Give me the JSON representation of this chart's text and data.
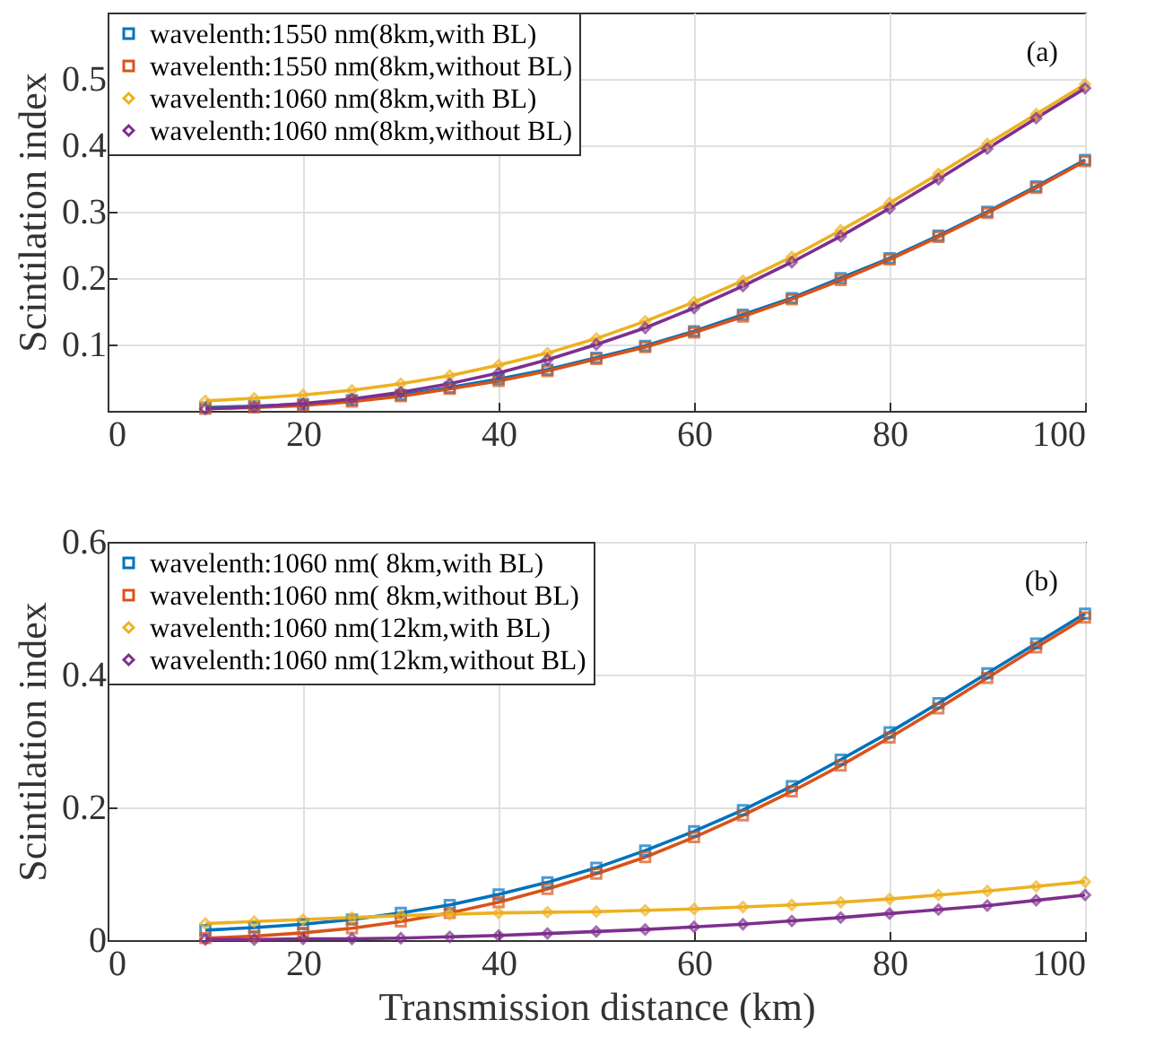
{
  "chart_data": [
    {
      "type": "line",
      "x": [
        10,
        15,
        20,
        25,
        30,
        35,
        40,
        45,
        50,
        55,
        60,
        65,
        70,
        75,
        80,
        85,
        90,
        95,
        100
      ],
      "ylabel": "Scintilation index",
      "annotations": [
        "(a)"
      ],
      "xlim": [
        0,
        100
      ],
      "xticks": [
        0,
        20,
        40,
        60,
        80,
        100
      ],
      "ylim": [
        0,
        0.6
      ],
      "yticks": [
        0.1,
        0.2,
        0.3,
        0.4,
        0.5
      ],
      "grid": true,
      "legend": "top left",
      "line_style": "solid",
      "series": [
        {
          "name": "wavelenth:1550 nm(8km,with BL)",
          "color": "#0072bd",
          "marker": "square",
          "values": [
            0.005,
            0.007,
            0.01,
            0.016,
            0.024,
            0.035,
            0.048,
            0.062,
            0.08,
            0.098,
            0.12,
            0.145,
            0.17,
            0.2,
            0.23,
            0.264,
            0.3,
            0.338,
            0.378
          ]
        },
        {
          "name": "wavelenth:1550 nm(8km,without BL)",
          "color": "#d95319",
          "marker": "square",
          "values": [
            0.003,
            0.005,
            0.008,
            0.014,
            0.022,
            0.033,
            0.045,
            0.06,
            0.078,
            0.096,
            0.118,
            0.142,
            0.168,
            0.197,
            0.228,
            0.262,
            0.298,
            0.336,
            0.376
          ]
        },
        {
          "name": "wavelenth:1060 nm(8km,with BL)",
          "color": "#edb120",
          "marker": "diamond",
          "values": [
            0.015,
            0.019,
            0.024,
            0.031,
            0.041,
            0.053,
            0.069,
            0.087,
            0.109,
            0.135,
            0.164,
            0.196,
            0.232,
            0.272,
            0.313,
            0.357,
            0.402,
            0.447,
            0.492
          ]
        },
        {
          "name": "wavelenth:1060 nm(8km,without BL)",
          "color": "#7e2f8e",
          "marker": "diamond",
          "values": [
            0.003,
            0.006,
            0.011,
            0.018,
            0.028,
            0.041,
            0.057,
            0.077,
            0.1,
            0.125,
            0.155,
            0.188,
            0.224,
            0.263,
            0.305,
            0.349,
            0.395,
            0.441,
            0.486
          ]
        }
      ]
    },
    {
      "type": "line",
      "x": [
        10,
        15,
        20,
        25,
        30,
        35,
        40,
        45,
        50,
        55,
        60,
        65,
        70,
        75,
        80,
        85,
        90,
        95,
        100
      ],
      "xlabel": "Transmission distance (km)",
      "ylabel": "Scintilation index",
      "annotations": [
        "(b)"
      ],
      "xlim": [
        0,
        100
      ],
      "xticks": [
        0,
        20,
        40,
        60,
        80,
        100
      ],
      "ylim": [
        0,
        0.6
      ],
      "yticks": [
        0,
        0.2,
        0.4,
        0.6
      ],
      "grid": true,
      "legend": "top left",
      "line_style": "solid",
      "series": [
        {
          "name": "wavelenth:1060 nm(  8km,with BL)",
          "color": "#0072bd",
          "marker": "square",
          "values": [
            0.015,
            0.019,
            0.024,
            0.031,
            0.041,
            0.053,
            0.069,
            0.087,
            0.109,
            0.135,
            0.164,
            0.196,
            0.232,
            0.272,
            0.313,
            0.357,
            0.402,
            0.447,
            0.492
          ]
        },
        {
          "name": "wavelenth:1060 nm(  8km,without BL)",
          "color": "#d95319",
          "marker": "square",
          "values": [
            0.003,
            0.006,
            0.011,
            0.018,
            0.028,
            0.041,
            0.057,
            0.077,
            0.1,
            0.125,
            0.155,
            0.188,
            0.224,
            0.263,
            0.305,
            0.349,
            0.395,
            0.441,
            0.486
          ]
        },
        {
          "name": "wavelenth:1060 nm(12km,with BL)",
          "color": "#edb120",
          "marker": "diamond",
          "values": [
            0.025,
            0.028,
            0.031,
            0.034,
            0.037,
            0.039,
            0.041,
            0.042,
            0.043,
            0.045,
            0.047,
            0.05,
            0.053,
            0.057,
            0.062,
            0.068,
            0.074,
            0.081,
            0.088
          ]
        },
        {
          "name": "wavelenth:1060 nm(12km,without BL)",
          "color": "#7e2f8e",
          "marker": "diamond",
          "values": [
            0.001,
            0.001,
            0.002,
            0.002,
            0.003,
            0.005,
            0.007,
            0.01,
            0.013,
            0.016,
            0.02,
            0.024,
            0.029,
            0.034,
            0.04,
            0.046,
            0.052,
            0.06,
            0.068
          ]
        }
      ]
    }
  ]
}
